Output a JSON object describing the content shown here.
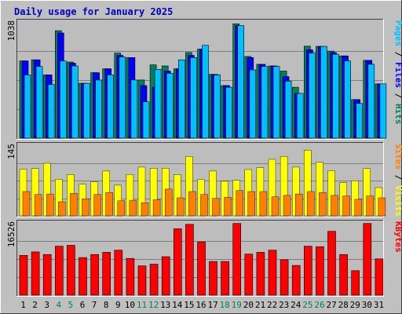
{
  "chart_data": {
    "type": "bar",
    "title": "Daily usage for January 2025",
    "days": [
      "1",
      "2",
      "3",
      "4",
      "5",
      "6",
      "7",
      "8",
      "9",
      "10",
      "11",
      "12",
      "13",
      "14",
      "15",
      "16",
      "17",
      "18",
      "19",
      "20",
      "21",
      "22",
      "23",
      "24",
      "25",
      "26",
      "27",
      "28",
      "29",
      "30",
      "31"
    ],
    "weekend_days": [
      "4",
      "5",
      "11",
      "12",
      "18",
      "19",
      "25",
      "26"
    ],
    "colors": {
      "background": "#c0c0c0",
      "panel_bg": "#bdbdbd",
      "hits": "#00805c",
      "files": "#0000ff",
      "pages": "#00c0ff",
      "sites": "#ff8000",
      "visits": "#ffff00",
      "kbytes": "#ff0000",
      "title": "#0000c0",
      "weekday_label": "#000000",
      "weekend_label": "#00805c",
      "gridline": "#808080"
    },
    "panels": [
      {
        "id": "hits-files-pages",
        "ymax_label": "1038",
        "ymax": 1038,
        "legend": [
          {
            "text": "Pages",
            "color": "#00c0ff"
          },
          {
            "text": " / ",
            "color": "#000000"
          },
          {
            "text": "Files",
            "color": "#0000ff"
          },
          {
            "text": " / ",
            "color": "#000000"
          },
          {
            "text": "Hits",
            "color": "#00805c"
          }
        ],
        "series": [
          {
            "name": "Hits",
            "values": [
              690,
              700,
              565,
              960,
              680,
              490,
              585,
              620,
              760,
              720,
              520,
              655,
              645,
              620,
              765,
              795,
              570,
              470,
              1022,
              730,
              660,
              645,
              600,
              455,
              822,
              820,
              778,
              735,
              345,
              695,
              485
            ]
          },
          {
            "name": "Files",
            "values": [
              690,
              700,
              565,
              940,
              670,
              490,
              585,
              620,
              740,
              720,
              470,
              455,
              600,
              620,
              740,
              795,
              570,
              470,
              1005,
              720,
              660,
              645,
              550,
              400,
              790,
              820,
              765,
              735,
              345,
              695,
              485
            ]
          },
          {
            "name": "Pages",
            "values": [
              565,
              640,
              480,
              690,
              645,
              490,
              520,
              565,
              725,
              520,
              325,
              615,
              580,
              700,
              720,
              830,
              565,
              455,
              1005,
              610,
              640,
              640,
              510,
              400,
              760,
              820,
              750,
              690,
              310,
              660,
              485
            ]
          }
        ]
      },
      {
        "id": "visits-sites",
        "ymax_label": "145",
        "ymax": 145,
        "legend": [
          {
            "text": "Sites",
            "color": "#ff8000"
          },
          {
            "text": " / ",
            "color": "#000000"
          },
          {
            "text": "Visits",
            "color": "#ffff00"
          }
        ],
        "series": [
          {
            "name": "Visits",
            "values": [
              96,
              97,
              108,
              75,
              85,
              65,
              70,
              92,
              63,
              85,
              100,
              98,
              98,
              85,
              122,
              75,
              92,
              71,
              73,
              95,
              99,
              116,
              122,
              100,
              135,
              110,
              93,
              68,
              72,
              97,
              58
            ]
          },
          {
            "name": "Sites",
            "values": [
              50,
              44,
              45,
              29,
              46,
              35,
              44,
              48,
              31,
              32,
              27,
              33,
              55,
              37,
              50,
              44,
              36,
              38,
              52,
              50,
              50,
              39,
              42,
              45,
              50,
              48,
              42,
              41,
              34,
              41,
              37
            ]
          }
        ]
      },
      {
        "id": "kbytes",
        "ymax_label": "16526",
        "ymax": 16526,
        "legend": [
          {
            "text": "KBytes",
            "color": "#ff0000"
          }
        ],
        "series": [
          {
            "name": "KBytes",
            "values": [
              9100,
              9900,
              9300,
              11200,
              11400,
              8600,
              9300,
              9800,
              10300,
              8400,
              6700,
              7100,
              8800,
              15200,
              16200,
              12200,
              7700,
              7700,
              16400,
              9400,
              9800,
              10300,
              8100,
              6800,
              11200,
              11100,
              14600,
              9300,
              5600,
              16400,
              8300
            ]
          }
        ]
      }
    ]
  }
}
